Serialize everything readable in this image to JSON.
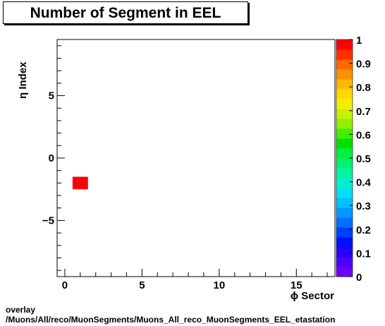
{
  "chart_data": {
    "type": "heatmap",
    "title": "Number of Segment in EEL",
    "xlabel": "ϕ Sector",
    "ylabel": "η Index",
    "xlim": [
      -0.5,
      17.5
    ],
    "ylim": [
      -9.5,
      9.5
    ],
    "x_ticks": [
      0,
      5,
      10,
      15
    ],
    "y_ticks": [
      -5,
      0,
      5
    ],
    "colorbar": {
      "min": 0,
      "max": 1,
      "ticks": [
        "0",
        "0.1",
        "0.2",
        "0.3",
        "0.4",
        "0.5",
        "0.6",
        "0.7",
        "0.8",
        "0.9",
        "1"
      ],
      "palette": [
        "#6f00ff",
        "#4b00ff",
        "#2a00ff",
        "#0010ff",
        "#0040ff",
        "#0070ff",
        "#0098ff",
        "#00c0ff",
        "#00e0f0",
        "#00f0d0",
        "#00f5a0",
        "#00f070",
        "#00f040",
        "#00e000",
        "#40f000",
        "#90f000",
        "#c8f000",
        "#f0f000",
        "#ffd800",
        "#ffb800",
        "#ff9000",
        "#ff6800",
        "#ff3000",
        "#ff0000"
      ]
    },
    "cells": [
      {
        "x": 1,
        "y": -2,
        "value": 1,
        "color": "#ff0000"
      }
    ]
  },
  "footer": {
    "line1": "overlay",
    "line2": "/Muons/All/reco/MuonSegments/Muons_All_reco_MuonSegments_EEL_etastation"
  }
}
